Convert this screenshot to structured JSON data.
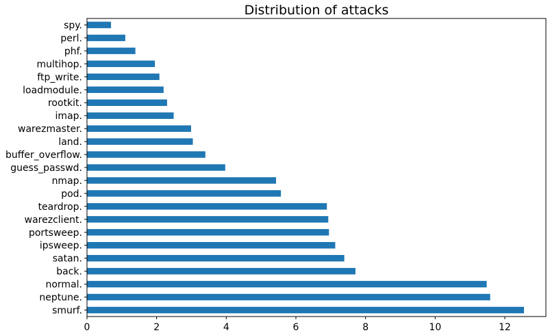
{
  "chart_data": {
    "type": "bar",
    "orientation": "horizontal",
    "title": "Distribution of attacks",
    "xlabel": "",
    "ylabel": "",
    "categories": [
      "smurf.",
      "neptune.",
      "normal.",
      "back.",
      "satan.",
      "ipsweep.",
      "portsweep.",
      "warezclient.",
      "teardrop.",
      "pod.",
      "nmap.",
      "guess_passwd.",
      "buffer_overflow.",
      "land.",
      "warezmaster.",
      "imap.",
      "rootkit.",
      "loadmodule.",
      "ftp_write.",
      "multihop.",
      "phf.",
      "perl.",
      "spy."
    ],
    "values": [
      12.55,
      11.58,
      11.48,
      7.71,
      7.39,
      7.13,
      6.95,
      6.93,
      6.89,
      5.57,
      5.43,
      3.97,
      3.4,
      3.04,
      2.99,
      2.49,
      2.3,
      2.2,
      2.08,
      1.95,
      1.39,
      1.1,
      0.69
    ],
    "xlim": [
      0,
      13.18
    ],
    "xticks": [
      0,
      2,
      4,
      6,
      8,
      10,
      12
    ],
    "grid": false,
    "legend": "none",
    "bar_color": "#1f77b4"
  }
}
